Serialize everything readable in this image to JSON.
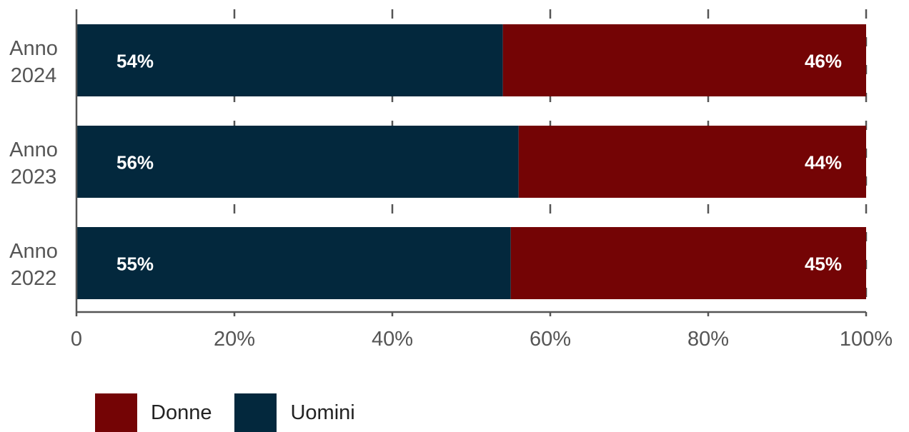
{
  "chart_data": {
    "type": "bar",
    "orientation": "horizontal",
    "stacked": true,
    "categories": [
      "Anno 2024",
      "Anno 2023",
      "Anno 2022"
    ],
    "series": [
      {
        "name": "Uomini",
        "values": [
          54,
          56,
          55
        ],
        "labels": [
          "54%",
          "56%",
          "55%"
        ],
        "color": "#03283d"
      },
      {
        "name": "Donne",
        "values": [
          46,
          44,
          45
        ],
        "labels": [
          "46%",
          "44%",
          "45%"
        ],
        "color": "#740405"
      }
    ],
    "xlim": [
      0,
      100
    ],
    "x_ticks": [
      "0",
      "20%",
      "40%",
      "60%",
      "80%",
      "100%"
    ],
    "grid": "dashed vertical",
    "legend": {
      "position": "bottom-left",
      "items": [
        {
          "name": "Donne",
          "color": "#740405"
        },
        {
          "name": "Uomini",
          "color": "#03283d"
        }
      ]
    }
  }
}
